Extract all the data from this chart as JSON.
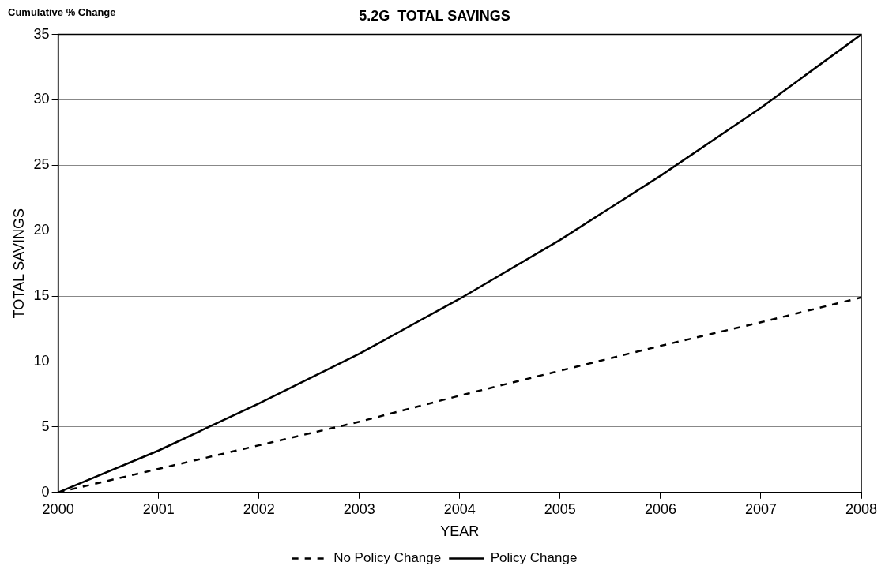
{
  "chart_data": {
    "type": "line",
    "title": "5.2G  TOTAL SAVINGS",
    "annotations": [
      "Cumulative % Change"
    ],
    "xlabel": "YEAR",
    "ylabel": "TOTAL SAVINGS",
    "x": [
      2000,
      2001,
      2002,
      2003,
      2004,
      2005,
      2006,
      2007,
      2008
    ],
    "series": [
      {
        "name": "No Policy Change",
        "color": "#000000",
        "line_style": "dashed",
        "values": [
          0,
          1.8,
          3.6,
          5.4,
          7.4,
          9.3,
          11.2,
          13.0,
          14.9
        ]
      },
      {
        "name": "Policy Change",
        "color": "#000000",
        "line_style": "solid",
        "values": [
          0,
          3.2,
          6.8,
          10.6,
          14.8,
          19.3,
          24.2,
          29.4,
          35
        ]
      }
    ],
    "xlim": [
      2000,
      2008
    ],
    "xticks": [
      2000,
      2001,
      2002,
      2003,
      2004,
      2005,
      2006,
      2007,
      2008
    ],
    "ylim": [
      0,
      35
    ],
    "yticks": [
      0,
      5,
      10,
      15,
      20,
      25,
      30,
      35
    ],
    "grid": "y",
    "legend": "bottom",
    "marker": "none"
  }
}
